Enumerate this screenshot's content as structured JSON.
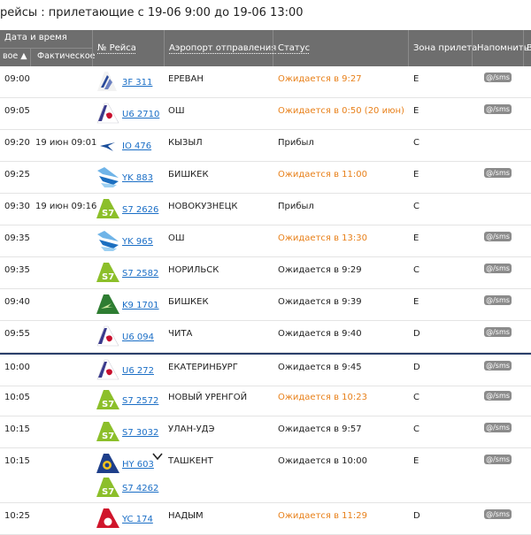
{
  "page": {
    "heading": "рейсы : прилетающие с 19-06 9:00 до 19-06 13:00"
  },
  "header": {
    "date_group": "Дата и время",
    "planned": "вое ▲",
    "actual": "Фактическое",
    "flight": "№ Рейса",
    "airport": "Аэропорт отправления",
    "status": "Статус",
    "zone": "Зона прилета",
    "remind": "Напомнить",
    "extra": "В"
  },
  "colors": {
    "orange_status": "#e8801a",
    "link": "#1a6ec6",
    "header_bg": "#6e6e6e",
    "badge": "#8b8b8b",
    "divider": "#2a3f6a"
  },
  "rows": [
    {
      "planned": "09:00",
      "actual": "",
      "flights": [
        {
          "code": "3F 311",
          "logo": "pegasus-tail-icon"
        }
      ],
      "airport": "ЕРЕВАН",
      "status": "Ожидается в 9:27",
      "status_color": "orange",
      "zone": "E",
      "remind": "@/sms"
    },
    {
      "planned": "09:05",
      "actual": "",
      "flights": [
        {
          "code": "U6 2710",
          "logo": "ural-airlines-tail-icon"
        }
      ],
      "airport": "ОШ",
      "status": "Ожидается в 0:50 (20 июн)",
      "status_color": "orange",
      "zone": "E",
      "remind": "@/sms"
    },
    {
      "planned": "09:20",
      "actual": "19 июн  09:01",
      "flights": [
        {
          "code": "IO 476",
          "logo": "iraero-tail-icon"
        }
      ],
      "airport": "КЫЗЫЛ",
      "status": "Прибыл",
      "status_color": "normal",
      "zone": "C",
      "remind": ""
    },
    {
      "planned": "09:25",
      "actual": "",
      "flights": [
        {
          "code": "YK 883",
          "logo": "avia-traffic-tail-icon"
        }
      ],
      "airport": "БИШКЕК",
      "status": "Ожидается в 11:00",
      "status_color": "orange",
      "zone": "E",
      "remind": "@/sms"
    },
    {
      "planned": "09:30",
      "actual": "19 июн  09:16",
      "flights": [
        {
          "code": "S7 2626",
          "logo": "s7-tail-icon"
        }
      ],
      "airport": "НОВОКУЗНЕЦК",
      "status": "Прибыл",
      "status_color": "normal",
      "zone": "C",
      "remind": ""
    },
    {
      "planned": "09:35",
      "actual": "",
      "flights": [
        {
          "code": "YK 965",
          "logo": "avia-traffic-tail-icon"
        }
      ],
      "airport": "ОШ",
      "status": "Ожидается в 13:30",
      "status_color": "orange",
      "zone": "E",
      "remind": "@/sms"
    },
    {
      "planned": "09:35",
      "actual": "",
      "flights": [
        {
          "code": "S7 2582",
          "logo": "s7-tail-icon"
        }
      ],
      "airport": "НОРИЛЬСК",
      "status": "Ожидается в 9:29",
      "status_color": "normal",
      "zone": "C",
      "remind": "@/sms"
    },
    {
      "planned": "09:40",
      "actual": "",
      "flights": [
        {
          "code": "K9 1701",
          "logo": "kras-tail-icon"
        }
      ],
      "airport": "БИШКЕК",
      "status": "Ожидается в 9:39",
      "status_color": "normal",
      "zone": "E",
      "remind": "@/sms"
    },
    {
      "planned": "09:55",
      "actual": "",
      "flights": [
        {
          "code": "U6 094",
          "logo": "ural-airlines-tail-icon"
        }
      ],
      "airport": "ЧИТА",
      "status": "Ожидается в 9:40",
      "status_color": "normal",
      "zone": "D",
      "remind": "@/sms"
    },
    {
      "planned": "10:00",
      "actual": "",
      "flights": [
        {
          "code": "U6 272",
          "logo": "ural-airlines-tail-icon"
        }
      ],
      "airport": "ЕКАТЕРИНБУРГ",
      "status": "Ожидается в 9:45",
      "status_color": "normal",
      "zone": "D",
      "remind": "@/sms"
    },
    {
      "planned": "10:05",
      "actual": "",
      "flights": [
        {
          "code": "S7 2572",
          "logo": "s7-tail-icon"
        }
      ],
      "airport": "НОВЫЙ УРЕНГОЙ",
      "status": "Ожидается в 10:23",
      "status_color": "orange",
      "zone": "C",
      "remind": "@/sms"
    },
    {
      "planned": "10:15",
      "actual": "",
      "flights": [
        {
          "code": "S7 3032",
          "logo": "s7-tail-icon"
        }
      ],
      "airport": "УЛАН-УДЭ",
      "status": "Ожидается в 9:57",
      "status_color": "normal",
      "zone": "C",
      "remind": "@/sms"
    },
    {
      "planned": "10:15",
      "actual": "",
      "flights": [
        {
          "code": "HY 603",
          "logo": "uzbekistan-tail-icon"
        },
        {
          "code": "S7 4262",
          "logo": "s7-tail-icon"
        }
      ],
      "airport": "ТАШКЕНТ",
      "status": "Ожидается в 10:00",
      "status_color": "normal",
      "zone": "E",
      "remind": "@/sms",
      "expand": "chevron-down-icon"
    },
    {
      "planned": "10:25",
      "actual": "",
      "flights": [
        {
          "code": "YC 174",
          "logo": "yamal-tail-icon"
        }
      ],
      "airport": "НАДЫМ",
      "status": "Ожидается в 11:29",
      "status_color": "orange",
      "zone": "D",
      "remind": "@/sms"
    }
  ]
}
